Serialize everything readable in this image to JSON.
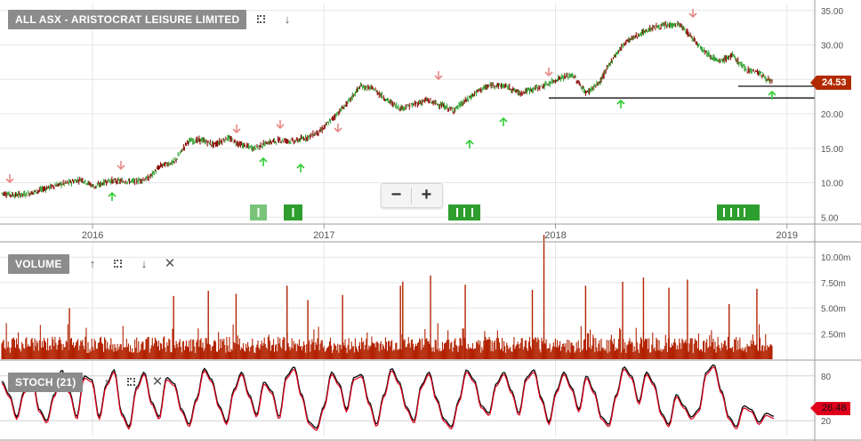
{
  "price_panel": {
    "title": "ALL ASX - ARISTOCRAT LEISURE LIMITED",
    "last_price_label": "24.53",
    "expand_icon": "expand-icon",
    "down_icon": "arrow-down-icon"
  },
  "volume_panel": {
    "title": "VOLUME",
    "icons": [
      "arrow-up-icon",
      "expand-icon",
      "arrow-down-icon",
      "close-icon"
    ]
  },
  "stoch_panel": {
    "title": "STOCH (21)",
    "last_value_label": "26.48",
    "icons": [
      "arrow-up-icon",
      "expand-icon",
      "close-icon"
    ]
  },
  "zoom": {
    "minus_label": "−",
    "plus_label": "+"
  },
  "colors": {
    "up_candle": "#2e9e2e",
    "down_candle": "#8b0000",
    "volume_bar": "#b22200",
    "signal_up": "#33cc33",
    "signal_down": "#e88888",
    "marker_green": "#2e9e2e",
    "stoch_main": "#111111",
    "stoch_signal": "#e0001b",
    "grid": "#e6e6e6"
  },
  "chart_data": [
    {
      "type": "line",
      "series": [
        {
          "values": [
            8.5,
            8.2,
            8.4,
            9.0,
            9.6,
            10.0,
            10.5,
            9.4,
            10.3,
            10.2,
            10.2,
            10.6,
            12.5,
            13.0,
            16.0,
            16.2,
            15.5,
            16.5,
            15.5,
            15.0,
            15.8,
            16.2,
            16.0,
            16.6,
            17.5,
            19.5,
            21.5,
            24.0,
            23.6,
            22.0,
            20.8,
            21.3,
            22.0,
            21.3,
            20.5,
            22.0,
            23.5,
            24.2,
            24.0,
            23.0,
            23.6,
            24.2,
            25.2,
            25.6,
            23.0,
            24.5,
            28.0,
            30.5,
            31.5,
            32.5,
            32.8,
            33.0,
            31.0,
            29.0,
            27.5,
            28.5,
            26.5,
            26.0,
            24.5
          ]
        }
      ],
      "x_ticks": [
        "2016",
        "2017",
        "2018",
        "2019"
      ],
      "y_ticks": [
        "5.00",
        "10.00",
        "15.00",
        "20.00",
        "25.00",
        "30.00",
        "35.00"
      ],
      "ylim": [
        4,
        36
      ],
      "last_price": 24.53,
      "support_lines": [
        22.3,
        24.0
      ],
      "grid": true
    },
    {
      "type": "bar",
      "y_ticks": [
        "2.50m",
        "5.00m",
        "7.50m",
        "10.00m"
      ],
      "ylim": [
        0,
        11.5
      ],
      "unit": "m",
      "spikes": [
        {
          "date": "2015.90",
          "value": 5.0
        },
        {
          "date": "2016.35",
          "value": 6.2
        },
        {
          "date": "2016.50",
          "value": 6.7
        },
        {
          "date": "2016.62",
          "value": 6.4
        },
        {
          "date": "2016.84",
          "value": 7.2
        },
        {
          "date": "2016.93",
          "value": 5.8
        },
        {
          "date": "2017.08",
          "value": 6.3
        },
        {
          "date": "2017.33",
          "value": 7.2
        },
        {
          "date": "2017.34",
          "value": 7.6
        },
        {
          "date": "2017.46",
          "value": 8.2
        },
        {
          "date": "2017.61",
          "value": 7.3
        },
        {
          "date": "2017.90",
          "value": 6.8
        },
        {
          "date": "2017.95",
          "value": 12.2
        },
        {
          "date": "2018.13",
          "value": 7.2
        },
        {
          "date": "2018.29",
          "value": 7.6
        },
        {
          "date": "2018.38",
          "value": 8.0
        },
        {
          "date": "2018.49",
          "value": 7.0
        },
        {
          "date": "2018.57",
          "value": 7.8
        },
        {
          "date": "2018.75",
          "value": 5.4
        },
        {
          "date": "2018.87",
          "value": 6.9
        }
      ]
    },
    {
      "type": "line",
      "y_ticks": [
        "20",
        "80"
      ],
      "ylim": [
        0,
        100
      ],
      "last_value": 26.48,
      "series": [
        {
          "values": [
            73,
            55,
            25,
            60,
            80,
            35,
            20,
            55,
            88,
            60,
            25,
            80,
            75,
            25,
            70,
            88,
            30,
            12,
            65,
            85,
            45,
            25,
            78,
            70,
            35,
            15,
            50,
            90,
            75,
            40,
            18,
            62,
            85,
            55,
            28,
            72,
            60,
            25,
            80,
            92,
            55,
            18,
            10,
            40,
            85,
            70,
            35,
            78,
            82,
            45,
            15,
            55,
            90,
            72,
            38,
            20,
            68,
            85,
            50,
            22,
            12,
            48,
            88,
            75,
            40,
            30,
            70,
            85,
            60,
            30,
            78,
            88,
            50,
            18,
            60,
            85,
            65,
            35,
            80,
            60,
            25,
            15,
            55,
            92,
            80,
            45,
            85,
            70,
            30,
            15,
            55,
            40,
            25,
            35,
            85,
            95,
            60,
            25,
            12,
            40,
            35,
            18,
            30,
            26
          ]
        }
      ]
    }
  ]
}
